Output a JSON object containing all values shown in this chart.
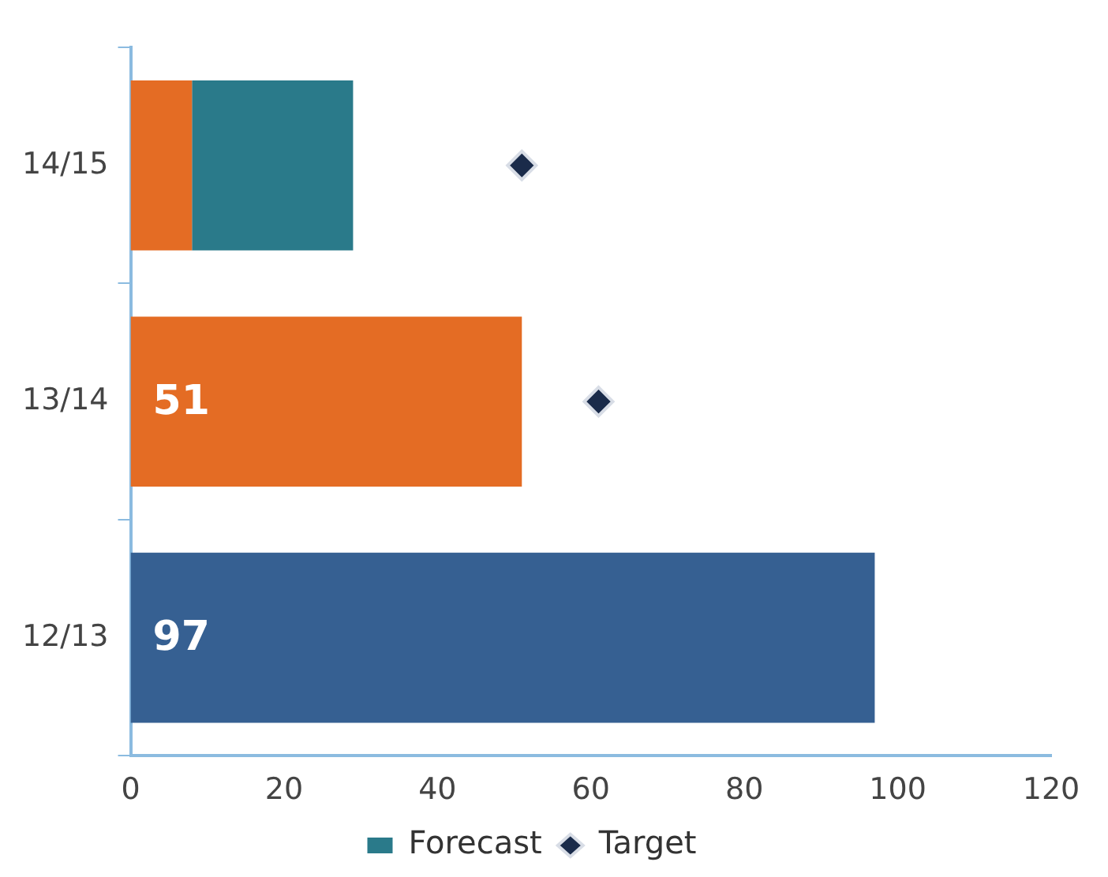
{
  "chart_data": {
    "type": "bar",
    "orientation": "horizontal",
    "stacked": true,
    "categories": [
      "14/15",
      "13/14",
      "12/13"
    ],
    "series": [
      {
        "colors": [
          "#e46c24",
          "#e46c24",
          "#366092"
        ],
        "values": [
          8,
          51,
          97
        ],
        "value_labels": [
          null,
          "51",
          "97"
        ]
      },
      {
        "name": "Forecast",
        "color": "#2a7a8a",
        "values": [
          21,
          null,
          null
        ]
      },
      {
        "name": "Target",
        "type": "scatter",
        "marker": "diamond",
        "color": "#1a2b4a",
        "x": [
          "14/15",
          "13/14",
          "12/13"
        ],
        "values": [
          51,
          61,
          null
        ]
      }
    ],
    "xlim": [
      0,
      120
    ],
    "xticks": [
      0,
      20,
      40,
      60,
      80,
      100,
      120
    ],
    "grid": false,
    "legend": "bottom"
  }
}
